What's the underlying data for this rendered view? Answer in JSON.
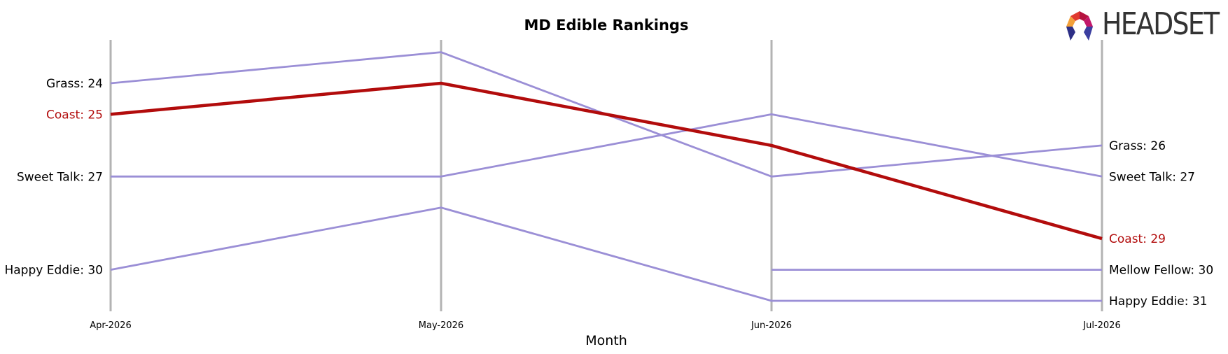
{
  "chart_data": {
    "type": "line",
    "title": "MD Edible Rankings",
    "xlabel": "Month",
    "ylabel": "",
    "categories": [
      "Apr-2026",
      "May-2026",
      "Jun-2026",
      "Jul-2026"
    ],
    "y_inverted": true,
    "ylim": [
      32,
      22.5
    ],
    "grid": false,
    "series": [
      {
        "name": "Grass",
        "values": [
          24,
          23,
          27,
          26
        ],
        "color": "#9b8fd6",
        "highlight": false
      },
      {
        "name": "Coast",
        "values": [
          25,
          24,
          26,
          29
        ],
        "color": "#b20c0c",
        "highlight": true
      },
      {
        "name": "Sweet Talk",
        "values": [
          27,
          27,
          25,
          27
        ],
        "color": "#9b8fd6",
        "highlight": false
      },
      {
        "name": "Happy Eddie",
        "values": [
          30,
          28,
          31,
          31
        ],
        "color": "#9b8fd6",
        "highlight": false
      },
      {
        "name": "Mellow Fellow",
        "values": [
          null,
          null,
          30,
          30
        ],
        "color": "#9b8fd6",
        "highlight": false
      }
    ],
    "left_labels": [
      {
        "series": "Grass",
        "text": "Grass: 24",
        "value": 24
      },
      {
        "series": "Coast",
        "text": "Coast: 25",
        "value": 25
      },
      {
        "series": "Sweet Talk",
        "text": "Sweet Talk: 27",
        "value": 27
      },
      {
        "series": "Happy Eddie",
        "text": "Happy Eddie: 30",
        "value": 30
      }
    ],
    "right_labels": [
      {
        "series": "Grass",
        "text": "Grass: 26",
        "value": 26
      },
      {
        "series": "Sweet Talk",
        "text": "Sweet Talk: 27",
        "value": 27
      },
      {
        "series": "Coast",
        "text": "Coast: 29",
        "value": 29
      },
      {
        "series": "Mellow Fellow",
        "text": "Mellow Fellow: 30",
        "value": 30
      },
      {
        "series": "Happy Eddie",
        "text": "Happy Eddie: 31",
        "value": 31
      }
    ],
    "colors": {
      "axis": "#b3b3b3",
      "highlight_label": "#b20c0c",
      "text": "#000000"
    }
  },
  "brand": {
    "logo_text": "HEADSET"
  }
}
